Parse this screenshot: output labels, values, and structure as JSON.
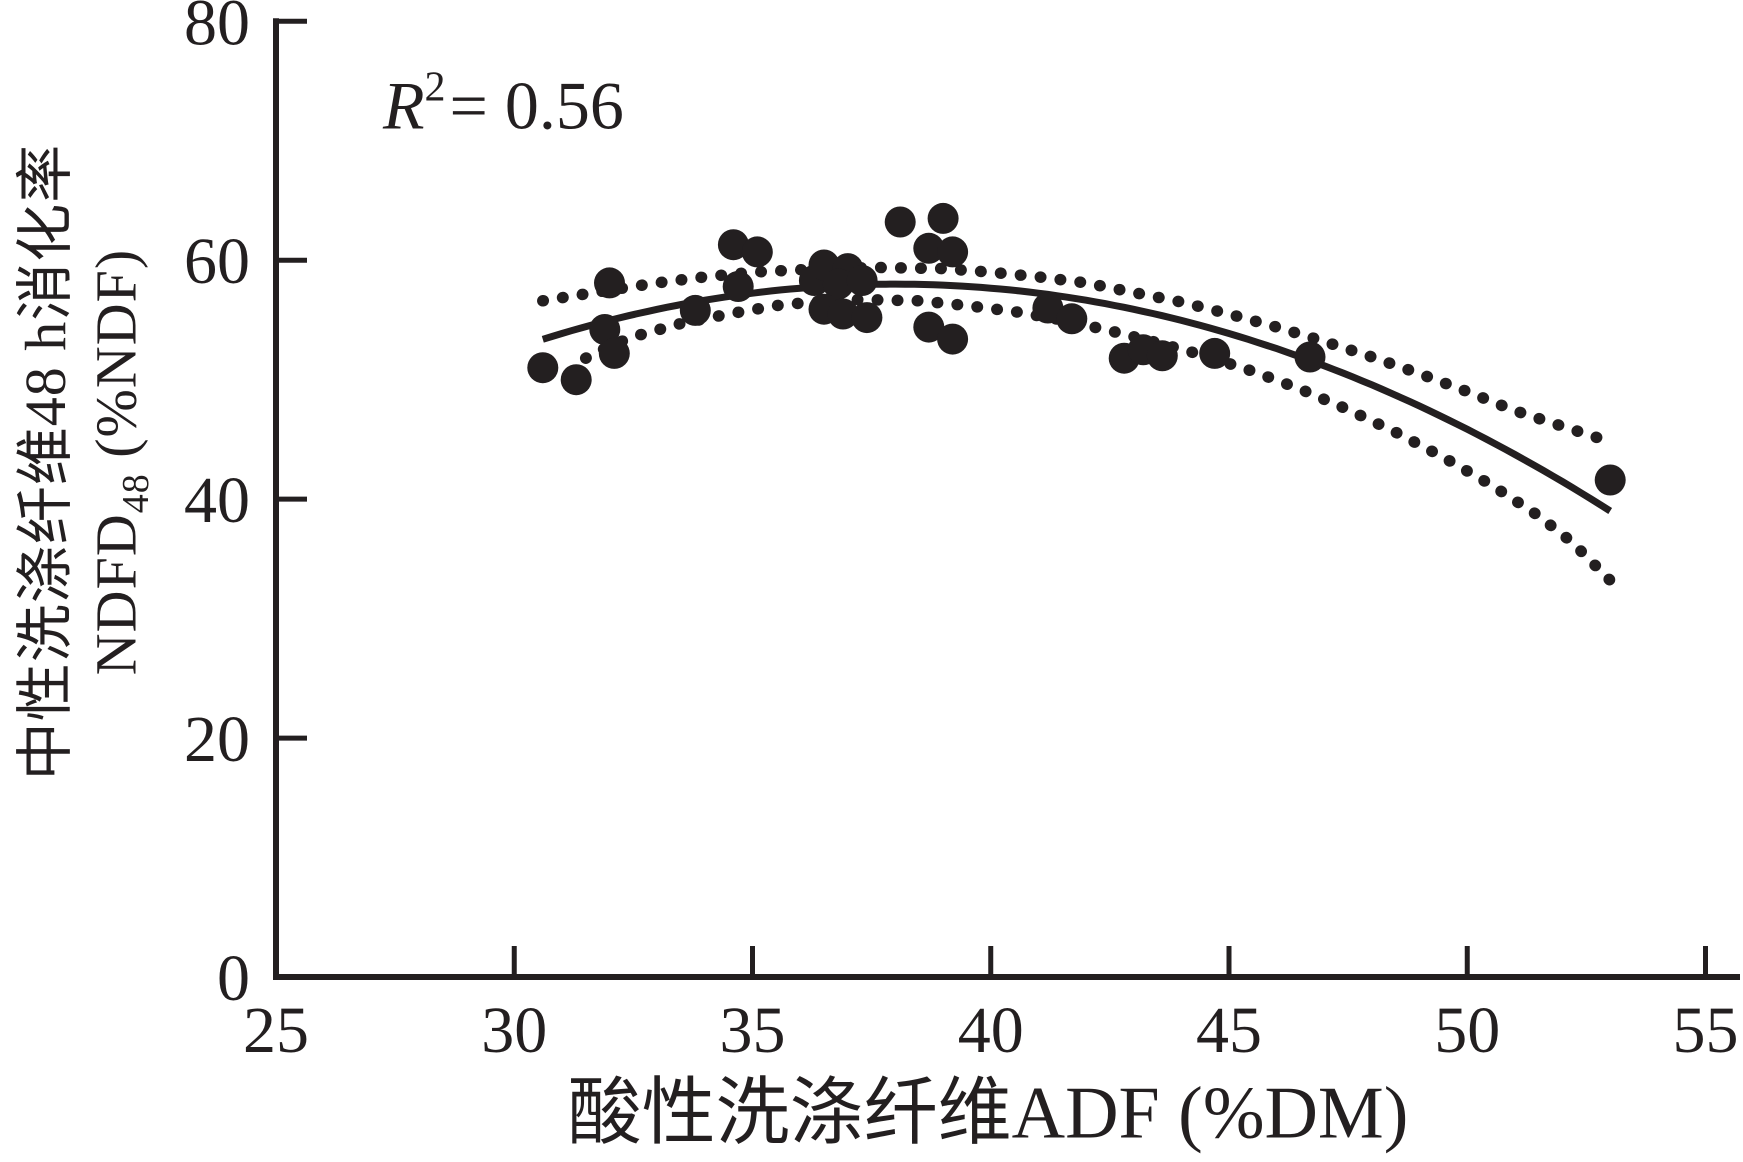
{
  "figure": {
    "background": "#ffffff",
    "annotation": {
      "r_label": "R",
      "r_exponent": "2",
      "r_value": "= 0.56"
    },
    "y_axis_label": {
      "line1": "中性洗涤纤维48 h消化率",
      "line2_main": "NDFD",
      "line2_sub": "48",
      "line2_rest": " (%NDF)"
    },
    "x_axis_label": "酸性洗涤纤维ADF (%DM)"
  },
  "chart_data": {
    "type": "scatter",
    "title": "",
    "xlabel": "酸性洗涤纤维ADF (%DM)",
    "ylabel": "中性洗涤纤维48 h消化率 NDFD48 (%NDF)",
    "annotation": "R2 = 0.56",
    "ink_color": "#231f20",
    "xlim": [
      25,
      55
    ],
    "ylim": [
      0,
      80
    ],
    "x_ticks": [
      25,
      30,
      35,
      40,
      45,
      50,
      55
    ],
    "y_ticks": [
      0,
      20,
      40,
      60,
      80
    ],
    "grid": false,
    "legend": false,
    "points": [
      [
        30.6,
        51.0
      ],
      [
        31.3,
        50.0
      ],
      [
        31.9,
        54.2
      ],
      [
        32.1,
        52.2
      ],
      [
        32.0,
        58.1
      ],
      [
        33.8,
        55.8
      ],
      [
        34.7,
        57.8
      ],
      [
        34.6,
        61.3
      ],
      [
        35.1,
        60.7
      ],
      [
        36.3,
        58.3
      ],
      [
        36.5,
        59.6
      ],
      [
        37.0,
        59.3
      ],
      [
        36.8,
        58.0
      ],
      [
        37.3,
        58.3
      ],
      [
        36.5,
        55.9
      ],
      [
        36.9,
        55.5
      ],
      [
        37.4,
        55.2
      ],
      [
        38.1,
        63.2
      ],
      [
        39.0,
        63.5
      ],
      [
        38.7,
        61.0
      ],
      [
        39.2,
        60.7
      ],
      [
        38.7,
        54.4
      ],
      [
        39.2,
        53.4
      ],
      [
        41.2,
        56.0
      ],
      [
        41.7,
        55.1
      ],
      [
        42.8,
        51.8
      ],
      [
        43.2,
        52.5
      ],
      [
        43.6,
        52.0
      ],
      [
        44.7,
        52.2
      ],
      [
        46.7,
        51.9
      ],
      [
        53.0,
        41.6
      ]
    ],
    "fit_curve": {
      "type": "quadratic",
      "vertex_x": 38,
      "vertex_y": 58,
      "a": -0.0844,
      "x_range": [
        30.6,
        53.0
      ]
    },
    "confidence_band": {
      "upper": [
        [
          30.6,
          56.6
        ],
        [
          32,
          57.5
        ],
        [
          33,
          58.1
        ],
        [
          34,
          58.6
        ],
        [
          35,
          59.0
        ],
        [
          36,
          59.2
        ],
        [
          37.5,
          59.4
        ],
        [
          39,
          59.3
        ],
        [
          40,
          59.0
        ],
        [
          41,
          58.6
        ],
        [
          42,
          58.1
        ],
        [
          43,
          57.3
        ],
        [
          44,
          56.5
        ],
        [
          45,
          55.5
        ],
        [
          46,
          54.4
        ],
        [
          47,
          53.2
        ],
        [
          48,
          51.9
        ],
        [
          49,
          50.5
        ],
        [
          50,
          49.0
        ],
        [
          51,
          47.4
        ],
        [
          52,
          46.1
        ],
        [
          53,
          44.8
        ]
      ],
      "lower": [
        [
          31.5,
          51.8
        ],
        [
          32,
          52.8
        ],
        [
          32.5,
          53.6
        ],
        [
          33.5,
          54.7
        ],
        [
          34.5,
          55.5
        ],
        [
          35.5,
          56.2
        ],
        [
          36.5,
          56.6
        ],
        [
          37.3,
          56.7
        ],
        [
          38.5,
          56.6
        ],
        [
          39.5,
          56.2
        ],
        [
          40.5,
          55.7
        ],
        [
          41.5,
          55.0
        ],
        [
          42.5,
          54.1
        ],
        [
          43.5,
          53.1
        ],
        [
          44.5,
          52.0
        ],
        [
          45.5,
          50.7
        ],
        [
          46.5,
          49.2
        ],
        [
          47.5,
          47.5
        ],
        [
          48.5,
          45.6
        ],
        [
          49.5,
          43.5
        ],
        [
          50.5,
          41.2
        ],
        [
          51.5,
          38.6
        ],
        [
          52.2,
          36.4
        ],
        [
          53.0,
          33.2
        ]
      ]
    }
  }
}
